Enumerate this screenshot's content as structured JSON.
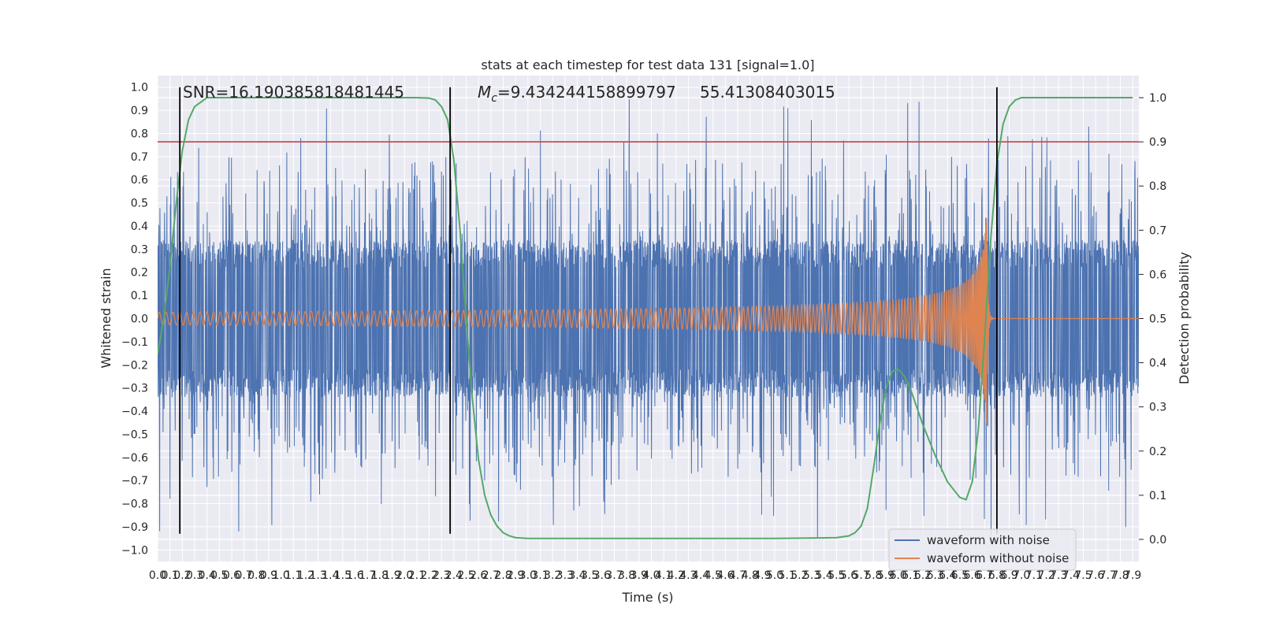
{
  "chart_data": {
    "type": "line",
    "title": "stats at each timestep for test data 131 [signal=1.0]",
    "xlabel": "Time (s)",
    "ylabel_left": "Whitened strain",
    "ylabel_right": "Detection probability",
    "annotations": {
      "snr": "SNR=16.190385818481445",
      "mc_symbol": "M",
      "mc_sub": "c",
      "mc_value": "=9.434244158899797",
      "overlap": "55.41308403015"
    },
    "xlim": [
      0.0,
      7.95
    ],
    "ylim_left": [
      -1.05,
      1.05
    ],
    "ylim_right": [
      -0.05,
      1.05
    ],
    "x_ticks": [
      0.0,
      0.1,
      0.2,
      0.3,
      0.4,
      0.5,
      0.6,
      0.7,
      0.8,
      0.9,
      1.0,
      1.1,
      1.2,
      1.3,
      1.4,
      1.5,
      1.6,
      1.7,
      1.8,
      1.9,
      2.0,
      2.1,
      2.2,
      2.3,
      2.4,
      2.5,
      2.6,
      2.7,
      2.8,
      2.9,
      3.0,
      3.1,
      3.2,
      3.3,
      3.4,
      3.5,
      3.6,
      3.7,
      3.8,
      3.9,
      4.0,
      4.1,
      4.2,
      4.3,
      4.4,
      4.5,
      4.6,
      4.7,
      4.8,
      4.9,
      5.0,
      5.1,
      5.2,
      5.3,
      5.4,
      5.5,
      5.6,
      5.7,
      5.8,
      5.9,
      6.0,
      6.1,
      6.2,
      6.3,
      6.4,
      6.5,
      6.6,
      6.7,
      6.8,
      6.9,
      7.0,
      7.1,
      7.2,
      7.3,
      7.4,
      7.5,
      7.6,
      7.7,
      7.8,
      7.9
    ],
    "y_ticks_left": [
      -1.0,
      -0.9,
      -0.8,
      -0.7,
      -0.6,
      -0.5,
      -0.4,
      -0.3,
      -0.2,
      -0.1,
      0.0,
      0.1,
      0.2,
      0.3,
      0.4,
      0.5,
      0.6,
      0.7,
      0.8,
      0.9,
      1.0
    ],
    "y_ticks_right": [
      0.0,
      0.1,
      0.2,
      0.3,
      0.4,
      0.5,
      0.6,
      0.7,
      0.8,
      0.9,
      1.0
    ],
    "threshold": {
      "axis": "right",
      "value": 0.9,
      "color": "#c44e52"
    },
    "vertical_markers": [
      0.18,
      2.37,
      6.8
    ],
    "series": [
      {
        "name": "waveform with noise",
        "axis": "left",
        "color": "#4c72b0"
      },
      {
        "name": "waveform without noise",
        "axis": "left",
        "color": "#dd8452"
      },
      {
        "axis": "right",
        "color": "#55a868",
        "x": [
          0.0,
          0.05,
          0.1,
          0.15,
          0.2,
          0.25,
          0.3,
          0.35,
          0.4,
          0.5,
          0.6,
          0.8,
          1.0,
          1.2,
          1.5,
          1.8,
          2.0,
          2.1,
          2.2,
          2.25,
          2.3,
          2.35,
          2.4,
          2.45,
          2.5,
          2.55,
          2.6,
          2.65,
          2.7,
          2.75,
          2.8,
          2.85,
          2.9,
          3.0,
          3.5,
          4.0,
          4.5,
          5.0,
          5.5,
          5.6,
          5.65,
          5.7,
          5.75,
          5.8,
          5.85,
          5.9,
          5.95,
          6.0,
          6.05,
          6.1,
          6.15,
          6.2,
          6.3,
          6.4,
          6.5,
          6.55,
          6.6,
          6.65,
          6.7,
          6.75,
          6.8,
          6.85,
          6.9,
          6.95,
          7.0,
          7.1,
          7.5,
          7.9
        ],
        "y": [
          0.42,
          0.5,
          0.62,
          0.76,
          0.88,
          0.95,
          0.98,
          0.99,
          1.0,
          1.0,
          1.0,
          1.0,
          1.0,
          1.0,
          1.0,
          1.0,
          1.0,
          1.0,
          0.999,
          0.995,
          0.98,
          0.95,
          0.86,
          0.7,
          0.5,
          0.32,
          0.18,
          0.1,
          0.055,
          0.03,
          0.015,
          0.008,
          0.004,
          0.002,
          0.002,
          0.002,
          0.002,
          0.002,
          0.004,
          0.008,
          0.015,
          0.03,
          0.07,
          0.16,
          0.26,
          0.34,
          0.38,
          0.385,
          0.37,
          0.34,
          0.3,
          0.26,
          0.19,
          0.13,
          0.095,
          0.09,
          0.13,
          0.25,
          0.45,
          0.68,
          0.85,
          0.94,
          0.98,
          0.995,
          1.0,
          1.0,
          1.0,
          1.0
        ]
      }
    ],
    "legend": {
      "placement": "lower-right"
    },
    "grid": true
  }
}
